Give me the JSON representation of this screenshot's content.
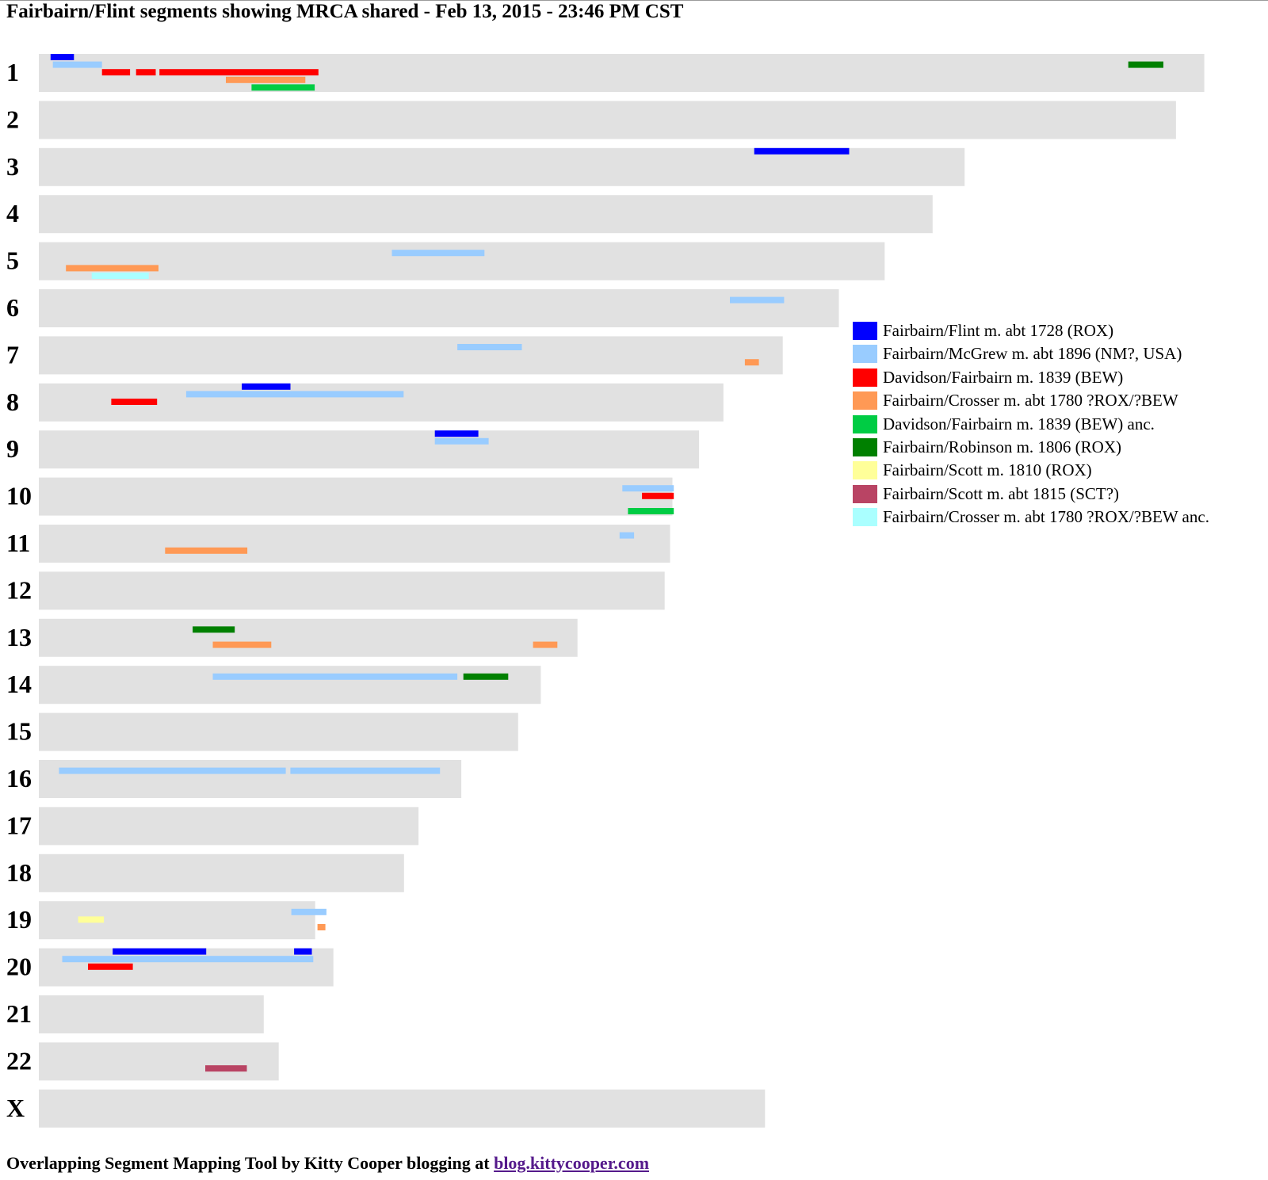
{
  "page": {
    "title": "Fairbairn/Flint segments showing MRCA shared - Feb 13, 2015 - 23:46 PM CST",
    "footer_text": "Overlapping Segment Mapping Tool by Kitty Cooper blogging at ",
    "footer_link": "blog.kittycooper.com"
  },
  "colors": {
    "background_bar": "#e1e1e1",
    "link": "#551a8b"
  },
  "legend": [
    {
      "label": "Fairbairn/Flint m. abt 1728 (ROX)",
      "color": "#0000ff"
    },
    {
      "label": "Fairbairn/McGrew m. abt 1896 (NM?, USA)",
      "color": "#99ccff"
    },
    {
      "label": "Davidson/Fairbairn m. 1839 (BEW)",
      "color": "#ff0000"
    },
    {
      "label": "Fairbairn/Crosser m. abt 1780 ?ROX/?BEW",
      "color": "#ff9955"
    },
    {
      "label": "Davidson/Fairbairn m. 1839 (BEW) anc.",
      "color": "#00cc44"
    },
    {
      "label": "Fairbairn/Robinson m. 1806 (ROX)",
      "color": "#008000"
    },
    {
      "label": "Fairbairn/Scott m. 1810 (ROX)",
      "color": "#ffff99"
    },
    {
      "label": "Fairbairn/Scott m. abt 1815 (SCT?)",
      "color": "#b94464"
    },
    {
      "label": "Fairbairn/Crosser m. abt 1780 ?ROX/?BEW anc.",
      "color": "#aaffff"
    }
  ],
  "chart_data": {
    "type": "chromosome-segment-map",
    "x_unit": "Mb",
    "chromosomes": [
      {
        "label": "1",
        "length": 249.25
      },
      {
        "label": "2",
        "length": 243.2
      },
      {
        "label": "3",
        "length": 198.0
      },
      {
        "label": "4",
        "length": 191.15
      },
      {
        "label": "5",
        "length": 180.9
      },
      {
        "label": "6",
        "length": 171.1
      },
      {
        "label": "7",
        "length": 159.1
      },
      {
        "label": "8",
        "length": 146.4
      },
      {
        "label": "9",
        "length": 141.2
      },
      {
        "label": "10",
        "length": 135.5
      },
      {
        "label": "11",
        "length": 135.0
      },
      {
        "label": "12",
        "length": 133.85
      },
      {
        "label": "13",
        "length": 115.2
      },
      {
        "label": "14",
        "length": 107.35
      },
      {
        "label": "15",
        "length": 102.5
      },
      {
        "label": "16",
        "length": 90.35
      },
      {
        "label": "17",
        "length": 81.2
      },
      {
        "label": "18",
        "length": 78.1
      },
      {
        "label": "19",
        "length": 59.1
      },
      {
        "label": "20",
        "length": 63.0
      },
      {
        "label": "21",
        "length": 48.1
      },
      {
        "label": "22",
        "length": 51.3
      },
      {
        "label": "X",
        "length": 155.3
      }
    ],
    "segments": [
      {
        "chr": "1",
        "group": 0,
        "start": 2.5,
        "end": 7.5,
        "lane": 0
      },
      {
        "chr": "1",
        "group": 1,
        "start": 3.0,
        "end": 13.5,
        "lane": 1
      },
      {
        "chr": "1",
        "group": 2,
        "start": 13.5,
        "end": 19.5,
        "lane": 2
      },
      {
        "chr": "1",
        "group": 2,
        "start": 20.8,
        "end": 25.0,
        "lane": 2
      },
      {
        "chr": "1",
        "group": 2,
        "start": 25.8,
        "end": 59.8,
        "lane": 2
      },
      {
        "chr": "1",
        "group": 3,
        "start": 40.0,
        "end": 57.0,
        "lane": 3
      },
      {
        "chr": "1",
        "group": 4,
        "start": 45.5,
        "end": 59.0,
        "lane": 4
      },
      {
        "chr": "1",
        "group": 5,
        "start": 233.0,
        "end": 240.5,
        "lane": 1
      },
      {
        "chr": "3",
        "group": 0,
        "start": 153.0,
        "end": 173.3,
        "lane": 0
      },
      {
        "chr": "5",
        "group": 1,
        "start": 75.5,
        "end": 95.3,
        "lane": 1
      },
      {
        "chr": "5",
        "group": 3,
        "start": 5.8,
        "end": 25.6,
        "lane": 3
      },
      {
        "chr": "5",
        "group": 8,
        "start": 11.3,
        "end": 23.5,
        "lane": 4
      },
      {
        "chr": "6",
        "group": 1,
        "start": 147.8,
        "end": 159.4,
        "lane": 1
      },
      {
        "chr": "7",
        "group": 1,
        "start": 89.5,
        "end": 103.3,
        "lane": 1
      },
      {
        "chr": "7",
        "group": 3,
        "start": 151.0,
        "end": 154.0,
        "lane": 3
      },
      {
        "chr": "8",
        "group": 0,
        "start": 43.4,
        "end": 53.8,
        "lane": 0
      },
      {
        "chr": "8",
        "group": 1,
        "start": 31.5,
        "end": 78.0,
        "lane": 1
      },
      {
        "chr": "8",
        "group": 2,
        "start": 15.5,
        "end": 25.3,
        "lane": 2
      },
      {
        "chr": "9",
        "group": 0,
        "start": 84.7,
        "end": 94.0,
        "lane": 0
      },
      {
        "chr": "9",
        "group": 1,
        "start": 84.7,
        "end": 96.2,
        "lane": 1
      },
      {
        "chr": "10",
        "group": 1,
        "start": 124.8,
        "end": 135.8,
        "lane": 1
      },
      {
        "chr": "10",
        "group": 2,
        "start": 129.0,
        "end": 135.8,
        "lane": 2
      },
      {
        "chr": "10",
        "group": 4,
        "start": 126.0,
        "end": 135.8,
        "lane": 4
      },
      {
        "chr": "11",
        "group": 1,
        "start": 124.2,
        "end": 127.3,
        "lane": 1
      },
      {
        "chr": "11",
        "group": 3,
        "start": 27.0,
        "end": 44.6,
        "lane": 3
      },
      {
        "chr": "13",
        "group": 5,
        "start": 32.9,
        "end": 41.9,
        "lane": 1
      },
      {
        "chr": "13",
        "group": 3,
        "start": 37.2,
        "end": 49.7,
        "lane": 3
      },
      {
        "chr": "13",
        "group": 3,
        "start": 105.7,
        "end": 110.9,
        "lane": 3
      },
      {
        "chr": "14",
        "group": 1,
        "start": 37.2,
        "end": 89.5,
        "lane": 1
      },
      {
        "chr": "14",
        "group": 5,
        "start": 90.8,
        "end": 100.4,
        "lane": 1
      },
      {
        "chr": "16",
        "group": 1,
        "start": 4.3,
        "end": 52.8,
        "lane": 1
      },
      {
        "chr": "16",
        "group": 1,
        "start": 53.8,
        "end": 85.8,
        "lane": 1
      },
      {
        "chr": "19",
        "group": 1,
        "start": 54.0,
        "end": 61.5,
        "lane": 1
      },
      {
        "chr": "19",
        "group": 6,
        "start": 8.4,
        "end": 13.9,
        "lane": 2
      },
      {
        "chr": "19",
        "group": 3,
        "start": 59.6,
        "end": 61.3,
        "lane": 3
      },
      {
        "chr": "20",
        "group": 0,
        "start": 15.8,
        "end": 35.8,
        "lane": 0
      },
      {
        "chr": "20",
        "group": 0,
        "start": 54.6,
        "end": 58.4,
        "lane": 0
      },
      {
        "chr": "20",
        "group": 1,
        "start": 5.0,
        "end": 58.7,
        "lane": 1
      },
      {
        "chr": "20",
        "group": 2,
        "start": 10.5,
        "end": 20.1,
        "lane": 2
      },
      {
        "chr": "22",
        "group": 7,
        "start": 35.6,
        "end": 44.5,
        "lane": 3
      }
    ]
  }
}
